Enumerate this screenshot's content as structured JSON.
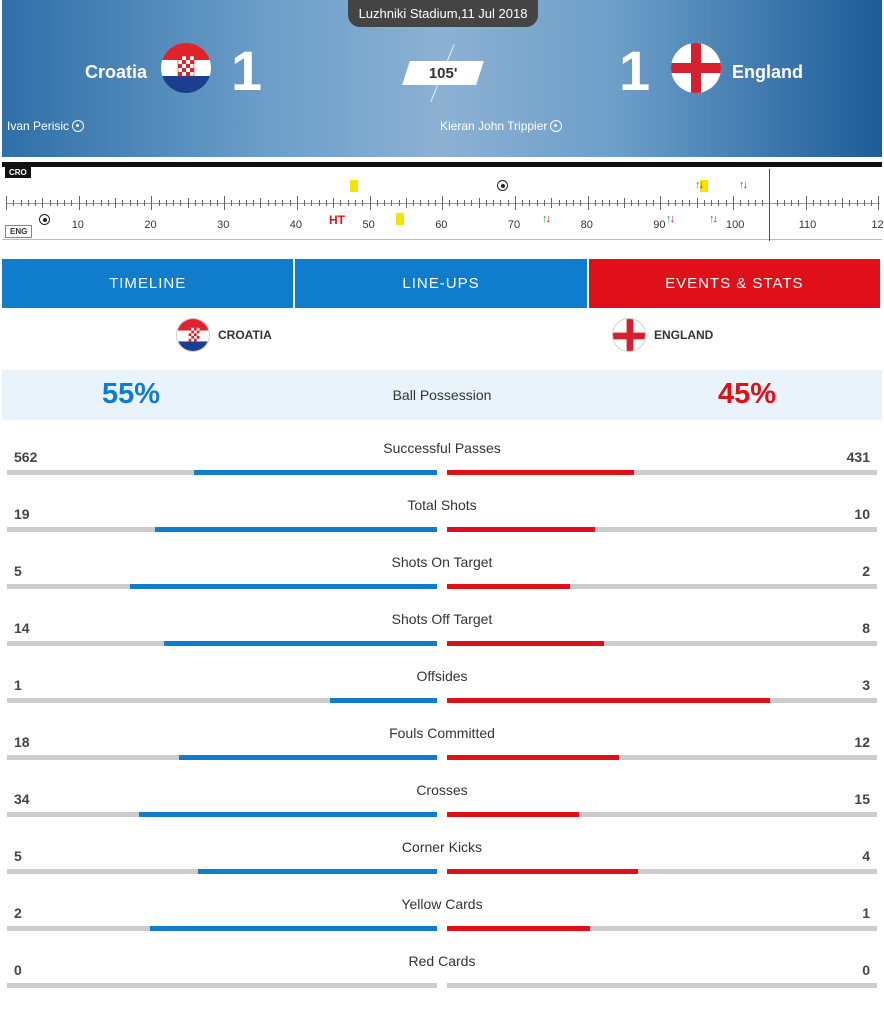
{
  "header": {
    "venue": "Luzhniki Stadium,11 Jul 2018",
    "home_name": "Croatia",
    "away_name": "England",
    "home_score": "1",
    "away_score": "1",
    "minute": "105'",
    "home_scorer": "Ivan Perisic",
    "away_scorer": "Kieran John Trippier"
  },
  "timeline": {
    "home_tag": "CRO",
    "away_tag": "ENG",
    "ht_label": "HT",
    "ticks": [
      "10",
      "20",
      "30",
      "40",
      "50",
      "60",
      "70",
      "80",
      "90",
      "100",
      "110",
      "12"
    ]
  },
  "tabs": [
    "TIMELINE",
    "LINE-UPS",
    "EVENTS & STATS"
  ],
  "teams": {
    "home": "CROATIA",
    "away": "ENGLAND"
  },
  "possession": {
    "label": "Ball Possession",
    "home": "55%",
    "away": "45%",
    "home_fraction": 0.55,
    "away_fraction": 0.45
  },
  "stats": [
    {
      "label": "Successful Passes",
      "home": "562",
      "away": "431",
      "home_ratio": 0.566,
      "away_ratio": 0.434
    },
    {
      "label": "Total Shots",
      "home": "19",
      "away": "10",
      "home_ratio": 0.655,
      "away_ratio": 0.345
    },
    {
      "label": "Shots On Target",
      "home": "5",
      "away": "2",
      "home_ratio": 0.714,
      "away_ratio": 0.286
    },
    {
      "label": "Shots Off Target",
      "home": "14",
      "away": "8",
      "home_ratio": 0.636,
      "away_ratio": 0.364
    },
    {
      "label": "Offsides",
      "home": "1",
      "away": "3",
      "home_ratio": 0.25,
      "away_ratio": 0.75
    },
    {
      "label": "Fouls Committed",
      "home": "18",
      "away": "12",
      "home_ratio": 0.6,
      "away_ratio": 0.4
    },
    {
      "label": "Crosses",
      "home": "34",
      "away": "15",
      "home_ratio": 0.694,
      "away_ratio": 0.306
    },
    {
      "label": "Corner Kicks",
      "home": "5",
      "away": "4",
      "home_ratio": 0.556,
      "away_ratio": 0.444
    },
    {
      "label": "Yellow Cards",
      "home": "2",
      "away": "1",
      "home_ratio": 0.667,
      "away_ratio": 0.333
    },
    {
      "label": "Red Cards",
      "home": "0",
      "away": "0",
      "home_ratio": 0,
      "away_ratio": 0
    }
  ],
  "colors": {
    "home": "#0f7ccc",
    "away": "#e0101a"
  }
}
